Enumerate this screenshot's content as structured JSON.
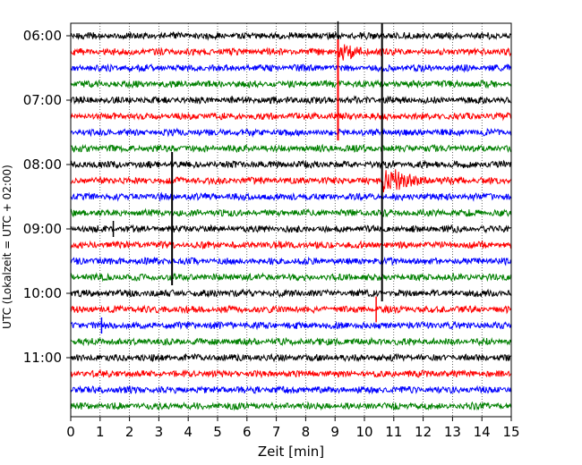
{
  "chart_data": {
    "type": "line",
    "title": "",
    "xlabel": "Zeit  [min]",
    "ylabel": "UTC (Lokalzeit = UTC + 02:00)",
    "xlim": [
      0,
      15
    ],
    "x_ticks": [
      0,
      1,
      2,
      3,
      4,
      5,
      6,
      7,
      8,
      9,
      10,
      11,
      12,
      13,
      14,
      15
    ],
    "y_ticks": [
      "06:00",
      "07:00",
      "08:00",
      "09:00",
      "10:00",
      "11:00"
    ],
    "grid": "vertical dotted lines at each minute",
    "trace_interval_min": 15,
    "start_time": "06:00",
    "colors_cycle": [
      "#000000",
      "#ff0000",
      "#0000ff",
      "#008000"
    ],
    "traces": [
      {
        "start": "06:00",
        "color": "#000000"
      },
      {
        "start": "06:15",
        "color": "#ff0000"
      },
      {
        "start": "06:30",
        "color": "#0000ff"
      },
      {
        "start": "06:45",
        "color": "#008000"
      },
      {
        "start": "07:00",
        "color": "#000000"
      },
      {
        "start": "07:15",
        "color": "#ff0000"
      },
      {
        "start": "07:30",
        "color": "#0000ff"
      },
      {
        "start": "07:45",
        "color": "#008000"
      },
      {
        "start": "08:00",
        "color": "#000000"
      },
      {
        "start": "08:15",
        "color": "#ff0000"
      },
      {
        "start": "08:30",
        "color": "#0000ff"
      },
      {
        "start": "08:45",
        "color": "#008000"
      },
      {
        "start": "09:00",
        "color": "#000000"
      },
      {
        "start": "09:15",
        "color": "#ff0000"
      },
      {
        "start": "09:30",
        "color": "#0000ff"
      },
      {
        "start": "09:45",
        "color": "#008000"
      },
      {
        "start": "10:00",
        "color": "#000000"
      },
      {
        "start": "10:15",
        "color": "#ff0000"
      },
      {
        "start": "10:30",
        "color": "#0000ff"
      },
      {
        "start": "10:45",
        "color": "#008000"
      },
      {
        "start": "11:00",
        "color": "#000000"
      },
      {
        "start": "11:15",
        "color": "#ff0000"
      },
      {
        "start": "11:30",
        "color": "#0000ff"
      },
      {
        "start": "11:45",
        "color": "#008000"
      }
    ],
    "events": [
      {
        "trace": 0,
        "minute": 9.1,
        "amplitude": 0.9,
        "type": "spike"
      },
      {
        "trace": 1,
        "minute": 9.2,
        "amplitude": 0.6,
        "type": "burst"
      },
      {
        "trace": 1,
        "minute": 9.1,
        "amplitude": 5.5,
        "type": "vline"
      },
      {
        "trace": 0,
        "minute": 10.6,
        "amplitude": 16.5,
        "type": "vline"
      },
      {
        "trace": 9,
        "minute": 10.7,
        "amplitude": 0.9,
        "type": "burst"
      },
      {
        "trace": 9,
        "minute": 11.0,
        "amplitude": 0.6,
        "type": "burst"
      },
      {
        "trace": 8,
        "minute": 3.45,
        "amplitude": 7.5,
        "type": "vline"
      },
      {
        "trace": 12,
        "minute": 1.45,
        "amplitude": 0.5,
        "type": "spike"
      },
      {
        "trace": 17,
        "minute": 10.4,
        "amplitude": 0.8,
        "type": "spike"
      },
      {
        "trace": 18,
        "minute": 1.05,
        "amplitude": 0.5,
        "type": "spike"
      }
    ]
  }
}
